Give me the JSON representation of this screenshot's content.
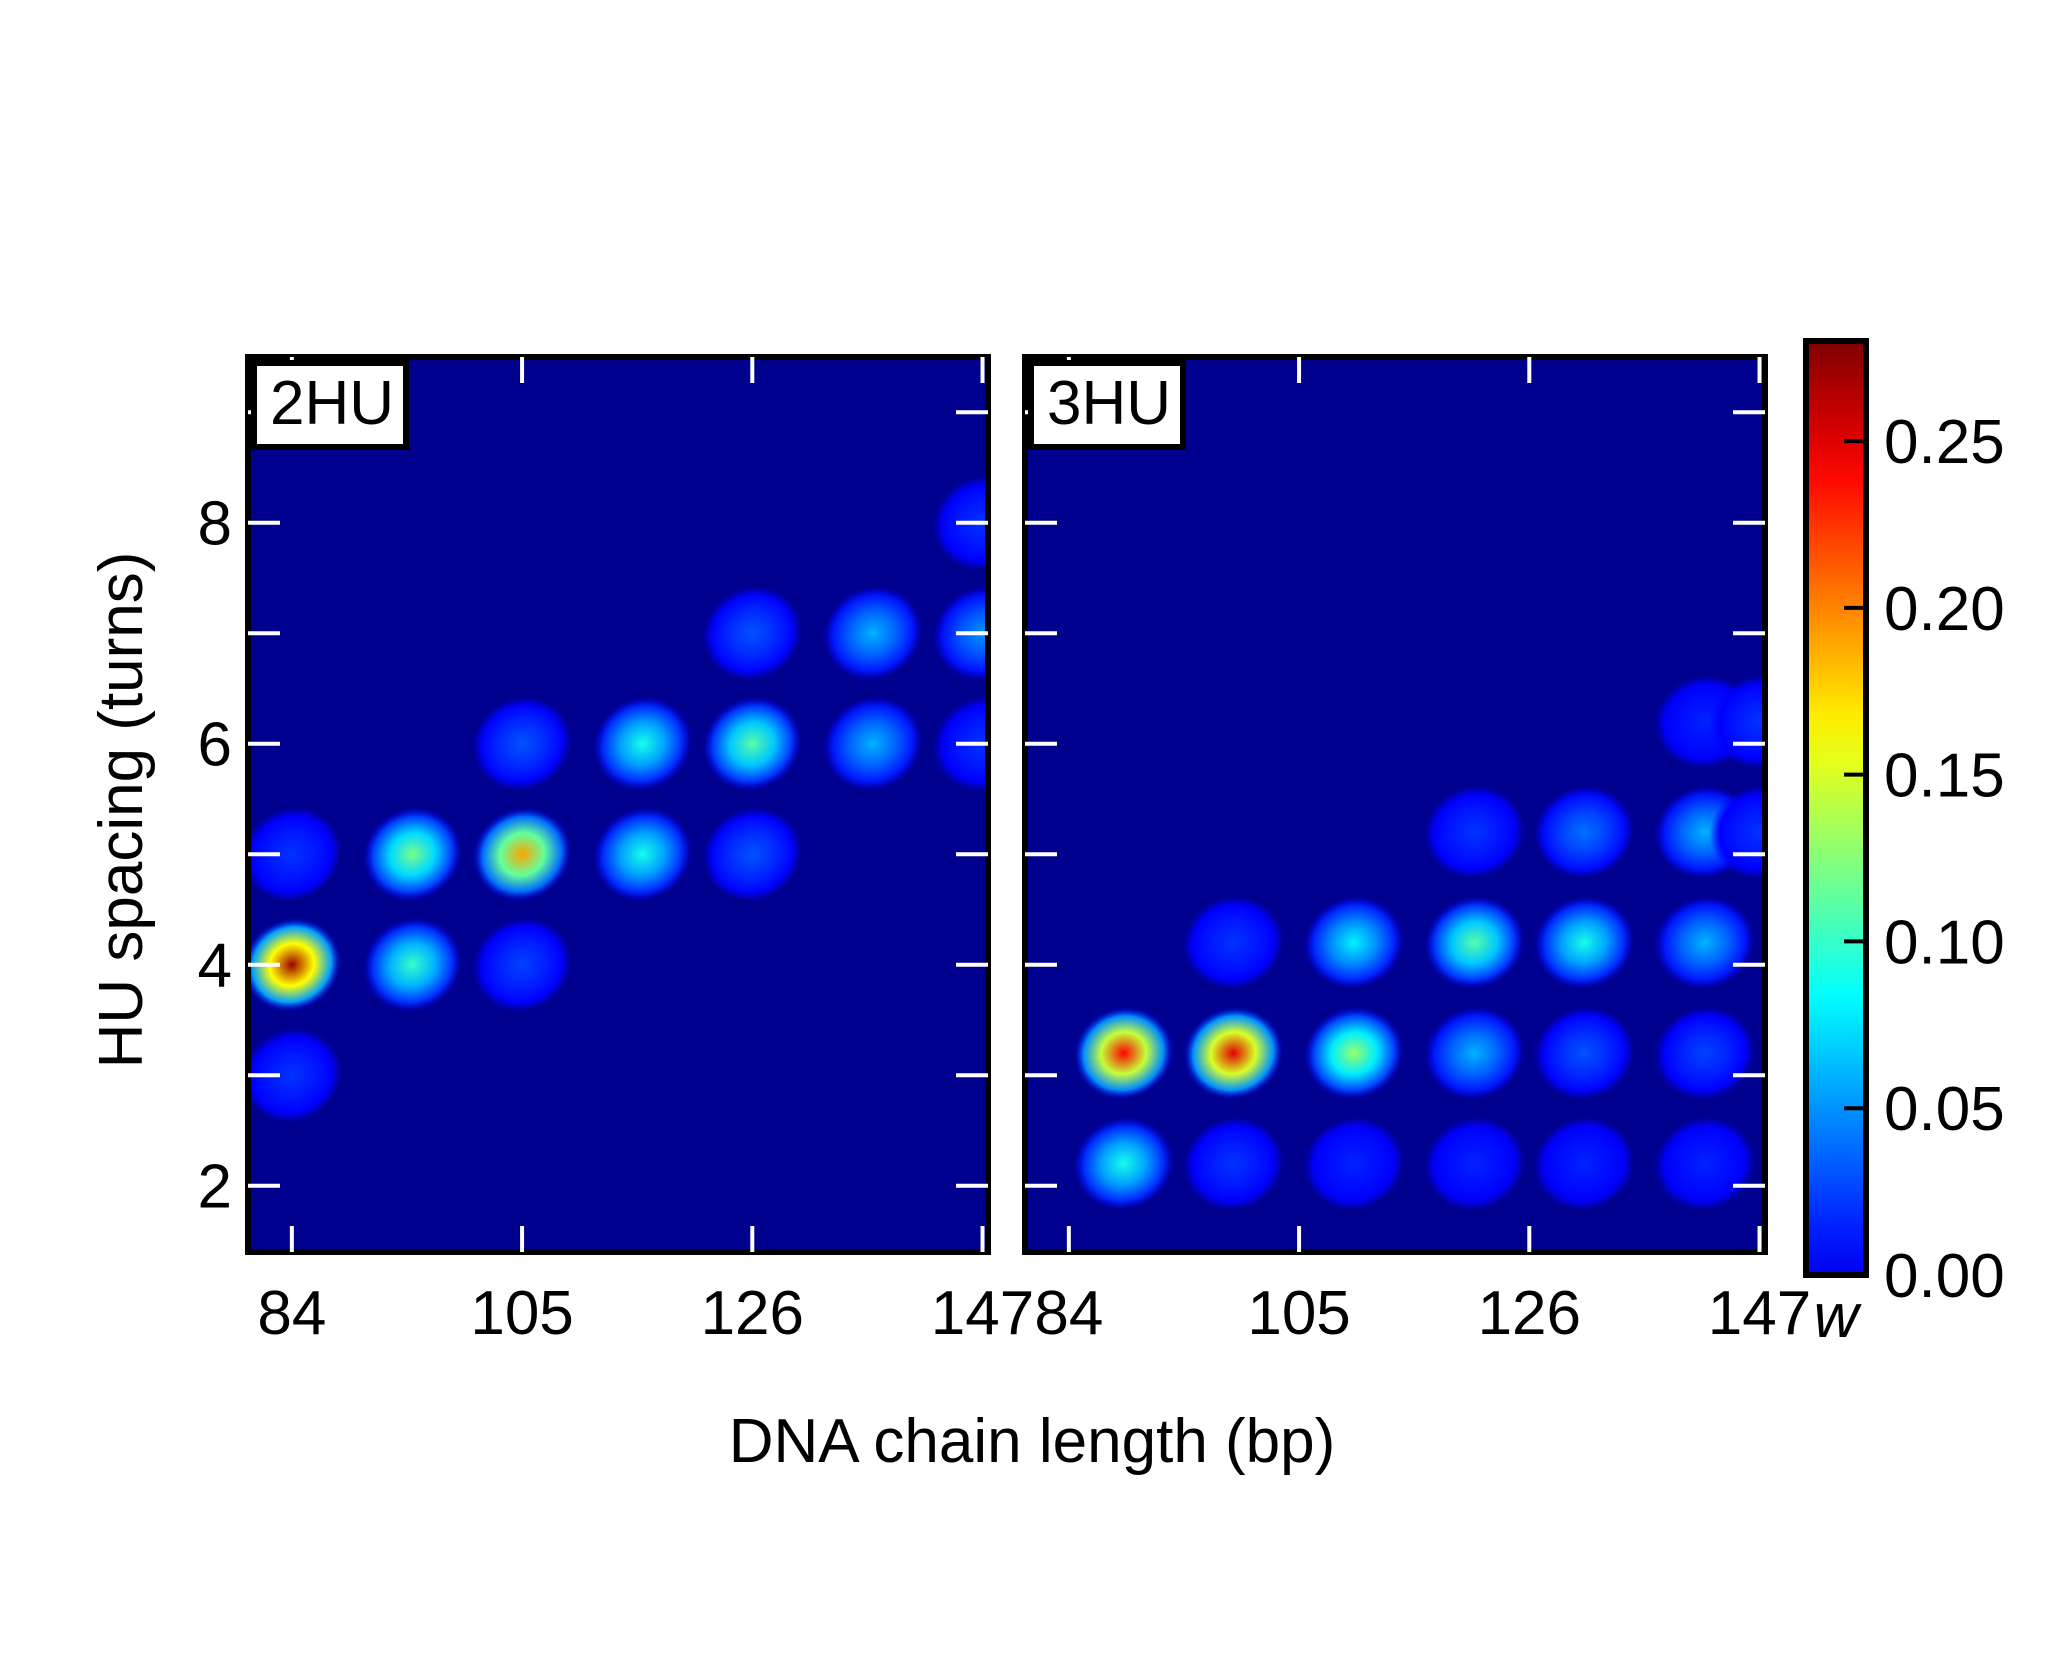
{
  "chart_data": {
    "type": "heatmap",
    "xlabel": "DNA chain length (bp)",
    "ylabel": "HU spacing (turns)",
    "x_range": [
      80,
      147.5
    ],
    "y_range": [
      1.4,
      9.5
    ],
    "xticks": [
      84,
      105,
      126,
      147
    ],
    "yticks": [
      2,
      4,
      6,
      8
    ],
    "colorbar": {
      "label": "w",
      "range": [
        0,
        0.28
      ],
      "ticks": [
        0.0,
        0.05,
        0.1,
        0.15,
        0.2,
        0.25
      ],
      "tick_labels": [
        "0.00",
        "0.05",
        "0.10",
        "0.15",
        "0.20",
        "0.25"
      ],
      "colormap": "jet"
    },
    "background_color": "#00008f",
    "panels": [
      {
        "label": "2HU",
        "peaks": [
          {
            "x": 84,
            "y": 4,
            "w": 0.27
          },
          {
            "x": 95,
            "y": 4,
            "w": 0.1
          },
          {
            "x": 105,
            "y": 4,
            "w": 0.025
          },
          {
            "x": 84,
            "y": 3,
            "w": 0.02
          },
          {
            "x": 84,
            "y": 5,
            "w": 0.02
          },
          {
            "x": 95,
            "y": 5,
            "w": 0.12
          },
          {
            "x": 105,
            "y": 5,
            "w": 0.19
          },
          {
            "x": 116,
            "y": 5,
            "w": 0.09
          },
          {
            "x": 126,
            "y": 5,
            "w": 0.03
          },
          {
            "x": 105,
            "y": 6,
            "w": 0.03
          },
          {
            "x": 116,
            "y": 6,
            "w": 0.09
          },
          {
            "x": 126,
            "y": 6,
            "w": 0.11
          },
          {
            "x": 137,
            "y": 6,
            "w": 0.06
          },
          {
            "x": 147,
            "y": 6,
            "w": 0.02
          },
          {
            "x": 126,
            "y": 7,
            "w": 0.03
          },
          {
            "x": 137,
            "y": 7,
            "w": 0.06
          },
          {
            "x": 147,
            "y": 7,
            "w": 0.05
          },
          {
            "x": 147,
            "y": 8,
            "w": 0.02
          }
        ]
      },
      {
        "label": "3HU",
        "peaks": [
          {
            "x": 89,
            "y": 2.2,
            "w": 0.09
          },
          {
            "x": 99,
            "y": 2.2,
            "w": 0.02
          },
          {
            "x": 110,
            "y": 2.2,
            "w": 0.015
          },
          {
            "x": 121,
            "y": 2.2,
            "w": 0.015
          },
          {
            "x": 131,
            "y": 2.2,
            "w": 0.015
          },
          {
            "x": 142,
            "y": 2.2,
            "w": 0.015
          },
          {
            "x": 89,
            "y": 3.2,
            "w": 0.24
          },
          {
            "x": 99,
            "y": 3.2,
            "w": 0.25
          },
          {
            "x": 110,
            "y": 3.2,
            "w": 0.13
          },
          {
            "x": 121,
            "y": 3.2,
            "w": 0.06
          },
          {
            "x": 131,
            "y": 3.2,
            "w": 0.03
          },
          {
            "x": 142,
            "y": 3.2,
            "w": 0.025
          },
          {
            "x": 99,
            "y": 4.2,
            "w": 0.02
          },
          {
            "x": 110,
            "y": 4.2,
            "w": 0.08
          },
          {
            "x": 121,
            "y": 4.2,
            "w": 0.11
          },
          {
            "x": 131,
            "y": 4.2,
            "w": 0.09
          },
          {
            "x": 142,
            "y": 4.2,
            "w": 0.06
          },
          {
            "x": 121,
            "y": 5.2,
            "w": 0.02
          },
          {
            "x": 131,
            "y": 5.2,
            "w": 0.04
          },
          {
            "x": 142,
            "y": 5.2,
            "w": 0.06
          },
          {
            "x": 147,
            "y": 5.2,
            "w": 0.02
          },
          {
            "x": 142,
            "y": 6.2,
            "w": 0.015
          },
          {
            "x": 147,
            "y": 6.2,
            "w": 0.02
          }
        ]
      }
    ]
  }
}
